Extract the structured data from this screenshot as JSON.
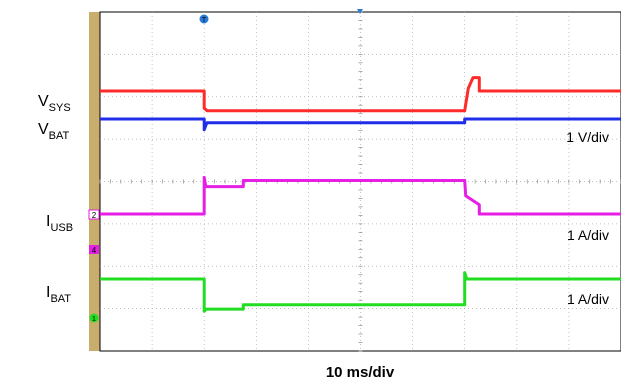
{
  "chart_data": {
    "type": "line",
    "xlabel": "10 ms/div",
    "x_range": [
      0,
      100
    ],
    "grid": true,
    "channels": [
      {
        "name_main": "V",
        "name_sub": "SYS",
        "color": "#ff2a2a",
        "scale": "1 V/div",
        "points": [
          [
            0,
            3.8
          ],
          [
            20.0,
            3.8
          ],
          [
            20.0,
            3.48
          ],
          [
            20.6,
            3.43
          ],
          [
            70.0,
            3.43
          ],
          [
            70.2,
            3.55
          ],
          [
            70.7,
            3.85
          ],
          [
            71.6,
            4.05
          ],
          [
            72.8,
            4.05
          ],
          [
            72.8,
            3.8
          ],
          [
            100,
            3.8
          ]
        ]
      },
      {
        "name_main": "V",
        "name_sub": "BAT",
        "color": "#1f2ee8",
        "scale": "1 V/div",
        "points": [
          [
            0,
            3.4
          ],
          [
            20.0,
            3.4
          ],
          [
            20.0,
            3.2
          ],
          [
            20.5,
            3.33
          ],
          [
            70.0,
            3.33
          ],
          [
            70.0,
            3.4
          ],
          [
            100,
            3.4
          ]
        ]
      },
      {
        "name_main": "I",
        "name_sub": "USB",
        "color": "#e61ee6",
        "scale": "1 A/div",
        "points": [
          [
            0,
            0.4
          ],
          [
            20.0,
            0.4
          ],
          [
            20.0,
            1.0
          ],
          [
            20.3,
            0.85
          ],
          [
            27.5,
            0.85
          ],
          [
            27.5,
            0.95
          ],
          [
            70.0,
            0.95
          ],
          [
            70.2,
            0.7
          ],
          [
            72.8,
            0.55
          ],
          [
            72.8,
            0.4
          ],
          [
            100,
            0.4
          ]
        ]
      },
      {
        "name_main": "I",
        "name_sub": "BAT",
        "color": "#22dd22",
        "scale": "1 A/div",
        "points": [
          [
            0,
            0.6
          ],
          [
            20.0,
            0.6
          ],
          [
            20.0,
            -0.15
          ],
          [
            20.4,
            -0.1
          ],
          [
            27.5,
            -0.1
          ],
          [
            27.5,
            0.0
          ],
          [
            70.0,
            0.0
          ],
          [
            70.0,
            0.75
          ],
          [
            70.4,
            0.6
          ],
          [
            100,
            0.6
          ]
        ]
      }
    ],
    "markers": {
      "trigger": "T",
      "ch2": "2",
      "ch4": "4",
      "ch1": "1"
    }
  }
}
